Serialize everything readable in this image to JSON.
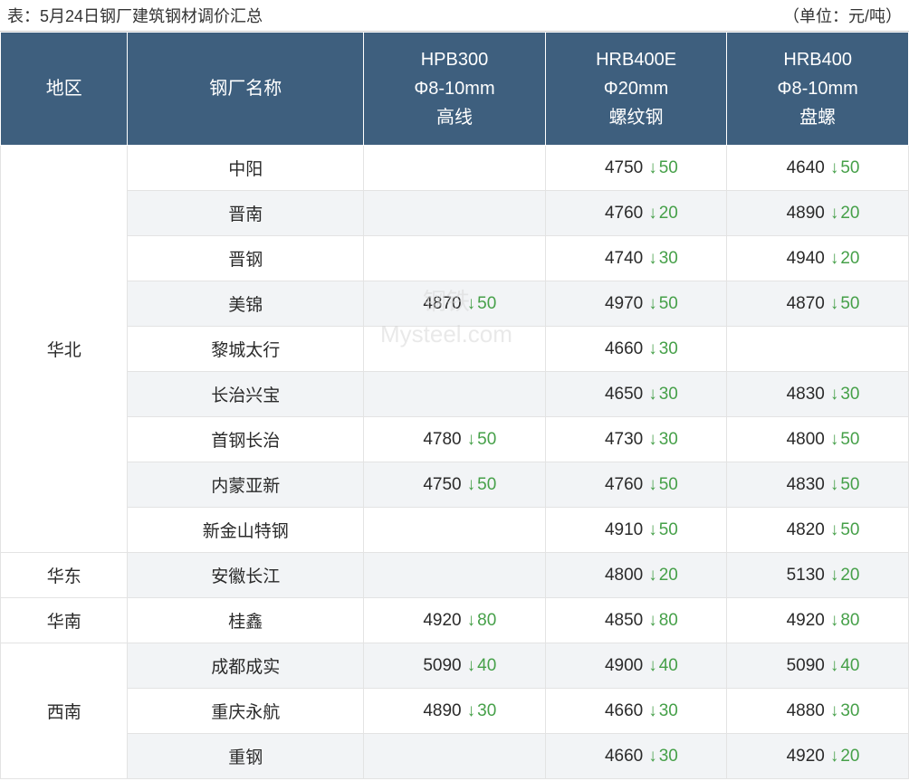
{
  "title_left": "表：5月24日钢厂建筑钢材调价汇总",
  "title_right": "（单位：元/吨）",
  "watermark_lines": [
    "钢铁",
    "Mysteel.com"
  ],
  "colors": {
    "header_bg": "#3e5f7e",
    "header_text": "#ffffff",
    "cell_border": "#e3e3e3",
    "alt_row_bg": "#f2f4f6",
    "arrow_color": "#46a049",
    "text_color": "#2a2a2a"
  },
  "columns": [
    {
      "lines": [
        "地区"
      ]
    },
    {
      "lines": [
        "钢厂名称"
      ]
    },
    {
      "lines": [
        "HPB300",
        "Φ8-10mm",
        "高线"
      ]
    },
    {
      "lines": [
        "HRB400E",
        "Φ20mm",
        "螺纹钢"
      ]
    },
    {
      "lines": [
        "HRB400",
        "Φ8-10mm",
        "盘螺"
      ]
    }
  ],
  "regions": [
    {
      "name": "华北",
      "rows": [
        {
          "factory": "中阳",
          "c3": null,
          "c4": {
            "p": 4750,
            "d": 50
          },
          "c5": {
            "p": 4640,
            "d": 50
          }
        },
        {
          "factory": "晋南",
          "c3": null,
          "c4": {
            "p": 4760,
            "d": 20
          },
          "c5": {
            "p": 4890,
            "d": 20
          }
        },
        {
          "factory": "晋钢",
          "c3": null,
          "c4": {
            "p": 4740,
            "d": 30
          },
          "c5": {
            "p": 4940,
            "d": 20
          }
        },
        {
          "factory": "美锦",
          "c3": {
            "p": 4870,
            "d": 50
          },
          "c4": {
            "p": 4970,
            "d": 50
          },
          "c5": {
            "p": 4870,
            "d": 50
          }
        },
        {
          "factory": "黎城太行",
          "c3": null,
          "c4": {
            "p": 4660,
            "d": 30
          },
          "c5": null
        },
        {
          "factory": "长治兴宝",
          "c3": null,
          "c4": {
            "p": 4650,
            "d": 30
          },
          "c5": {
            "p": 4830,
            "d": 30
          }
        },
        {
          "factory": "首钢长治",
          "c3": {
            "p": 4780,
            "d": 50
          },
          "c4": {
            "p": 4730,
            "d": 30
          },
          "c5": {
            "p": 4800,
            "d": 50
          }
        },
        {
          "factory": "内蒙亚新",
          "c3": {
            "p": 4750,
            "d": 50
          },
          "c4": {
            "p": 4760,
            "d": 50
          },
          "c5": {
            "p": 4830,
            "d": 50
          }
        },
        {
          "factory": "新金山特钢",
          "c3": null,
          "c4": {
            "p": 4910,
            "d": 50
          },
          "c5": {
            "p": 4820,
            "d": 50
          }
        }
      ]
    },
    {
      "name": "华东",
      "rows": [
        {
          "factory": "安徽长江",
          "c3": null,
          "c4": {
            "p": 4800,
            "d": 20
          },
          "c5": {
            "p": 5130,
            "d": 20
          }
        }
      ]
    },
    {
      "name": "华南",
      "rows": [
        {
          "factory": "桂鑫",
          "c3": {
            "p": 4920,
            "d": 80
          },
          "c4": {
            "p": 4850,
            "d": 80
          },
          "c5": {
            "p": 4920,
            "d": 80
          }
        }
      ]
    },
    {
      "name": "西南",
      "rows": [
        {
          "factory": "成都成实",
          "c3": {
            "p": 5090,
            "d": 40
          },
          "c4": {
            "p": 4900,
            "d": 40
          },
          "c5": {
            "p": 5090,
            "d": 40
          }
        },
        {
          "factory": "重庆永航",
          "c3": {
            "p": 4890,
            "d": 30
          },
          "c4": {
            "p": 4660,
            "d": 30
          },
          "c5": {
            "p": 4880,
            "d": 30
          }
        },
        {
          "factory": "重钢",
          "c3": null,
          "c4": {
            "p": 4660,
            "d": 30
          },
          "c5": {
            "p": 4920,
            "d": 20
          }
        }
      ]
    }
  ],
  "col_widths_pct": [
    14,
    26,
    20,
    20,
    20
  ]
}
